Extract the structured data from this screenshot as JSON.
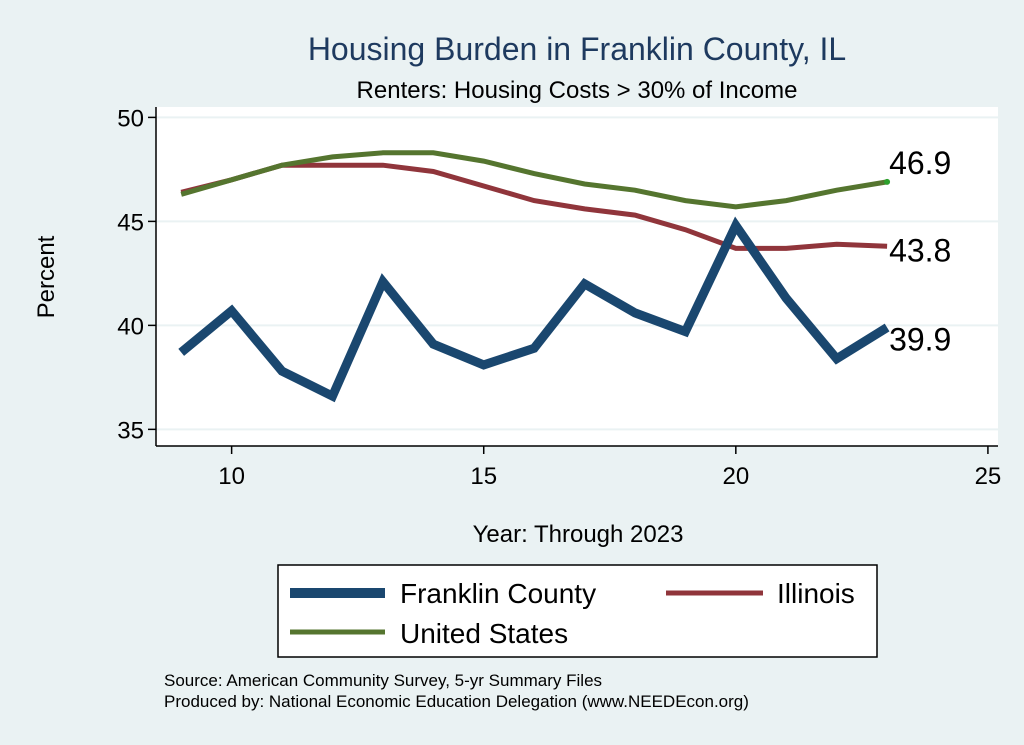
{
  "chart_data": {
    "type": "line",
    "title": "Housing Burden in Franklin County, IL",
    "subtitle": "Renters: Housing Costs > 30% of Income",
    "xlabel": "Year: Through 2023",
    "ylabel": "Percent",
    "xlim": [
      8.5,
      25.2
    ],
    "ylim": [
      34.2,
      50.5
    ],
    "xticks": [
      10,
      15,
      20,
      25
    ],
    "yticks": [
      35,
      40,
      45,
      50
    ],
    "x": [
      9,
      10,
      11,
      12,
      13,
      14,
      15,
      16,
      17,
      18,
      19,
      20,
      21,
      22,
      23
    ],
    "series": [
      {
        "name": "Franklin County",
        "color": "#1a476f",
        "values": [
          38.7,
          40.7,
          37.8,
          36.6,
          42.1,
          39.1,
          38.1,
          38.9,
          42.0,
          40.6,
          39.7,
          44.8,
          41.3,
          38.4,
          39.9
        ],
        "end_label": "39.9"
      },
      {
        "name": "Illinois",
        "color": "#90353b",
        "values": [
          46.4,
          47.0,
          47.7,
          47.7,
          47.7,
          47.4,
          46.7,
          46.0,
          45.6,
          45.3,
          44.6,
          43.7,
          43.7,
          43.9,
          43.8
        ],
        "end_label": "43.8"
      },
      {
        "name": "United States",
        "color": "#55752f",
        "values": [
          46.3,
          47.0,
          47.7,
          48.1,
          48.3,
          48.3,
          47.9,
          47.3,
          46.8,
          46.5,
          46.0,
          45.7,
          46.0,
          46.5,
          46.9
        ],
        "end_label": "46.9"
      }
    ],
    "legend": {
      "position": "bottom",
      "entries": [
        "Franklin County",
        "Illinois",
        "United States"
      ]
    },
    "grid": true
  },
  "notes": {
    "source": "Source: American Community Survey, 5-yr Summary Files",
    "produced_by": "Produced by: National Economic Education Delegation (www.NEEDEcon.org)"
  }
}
